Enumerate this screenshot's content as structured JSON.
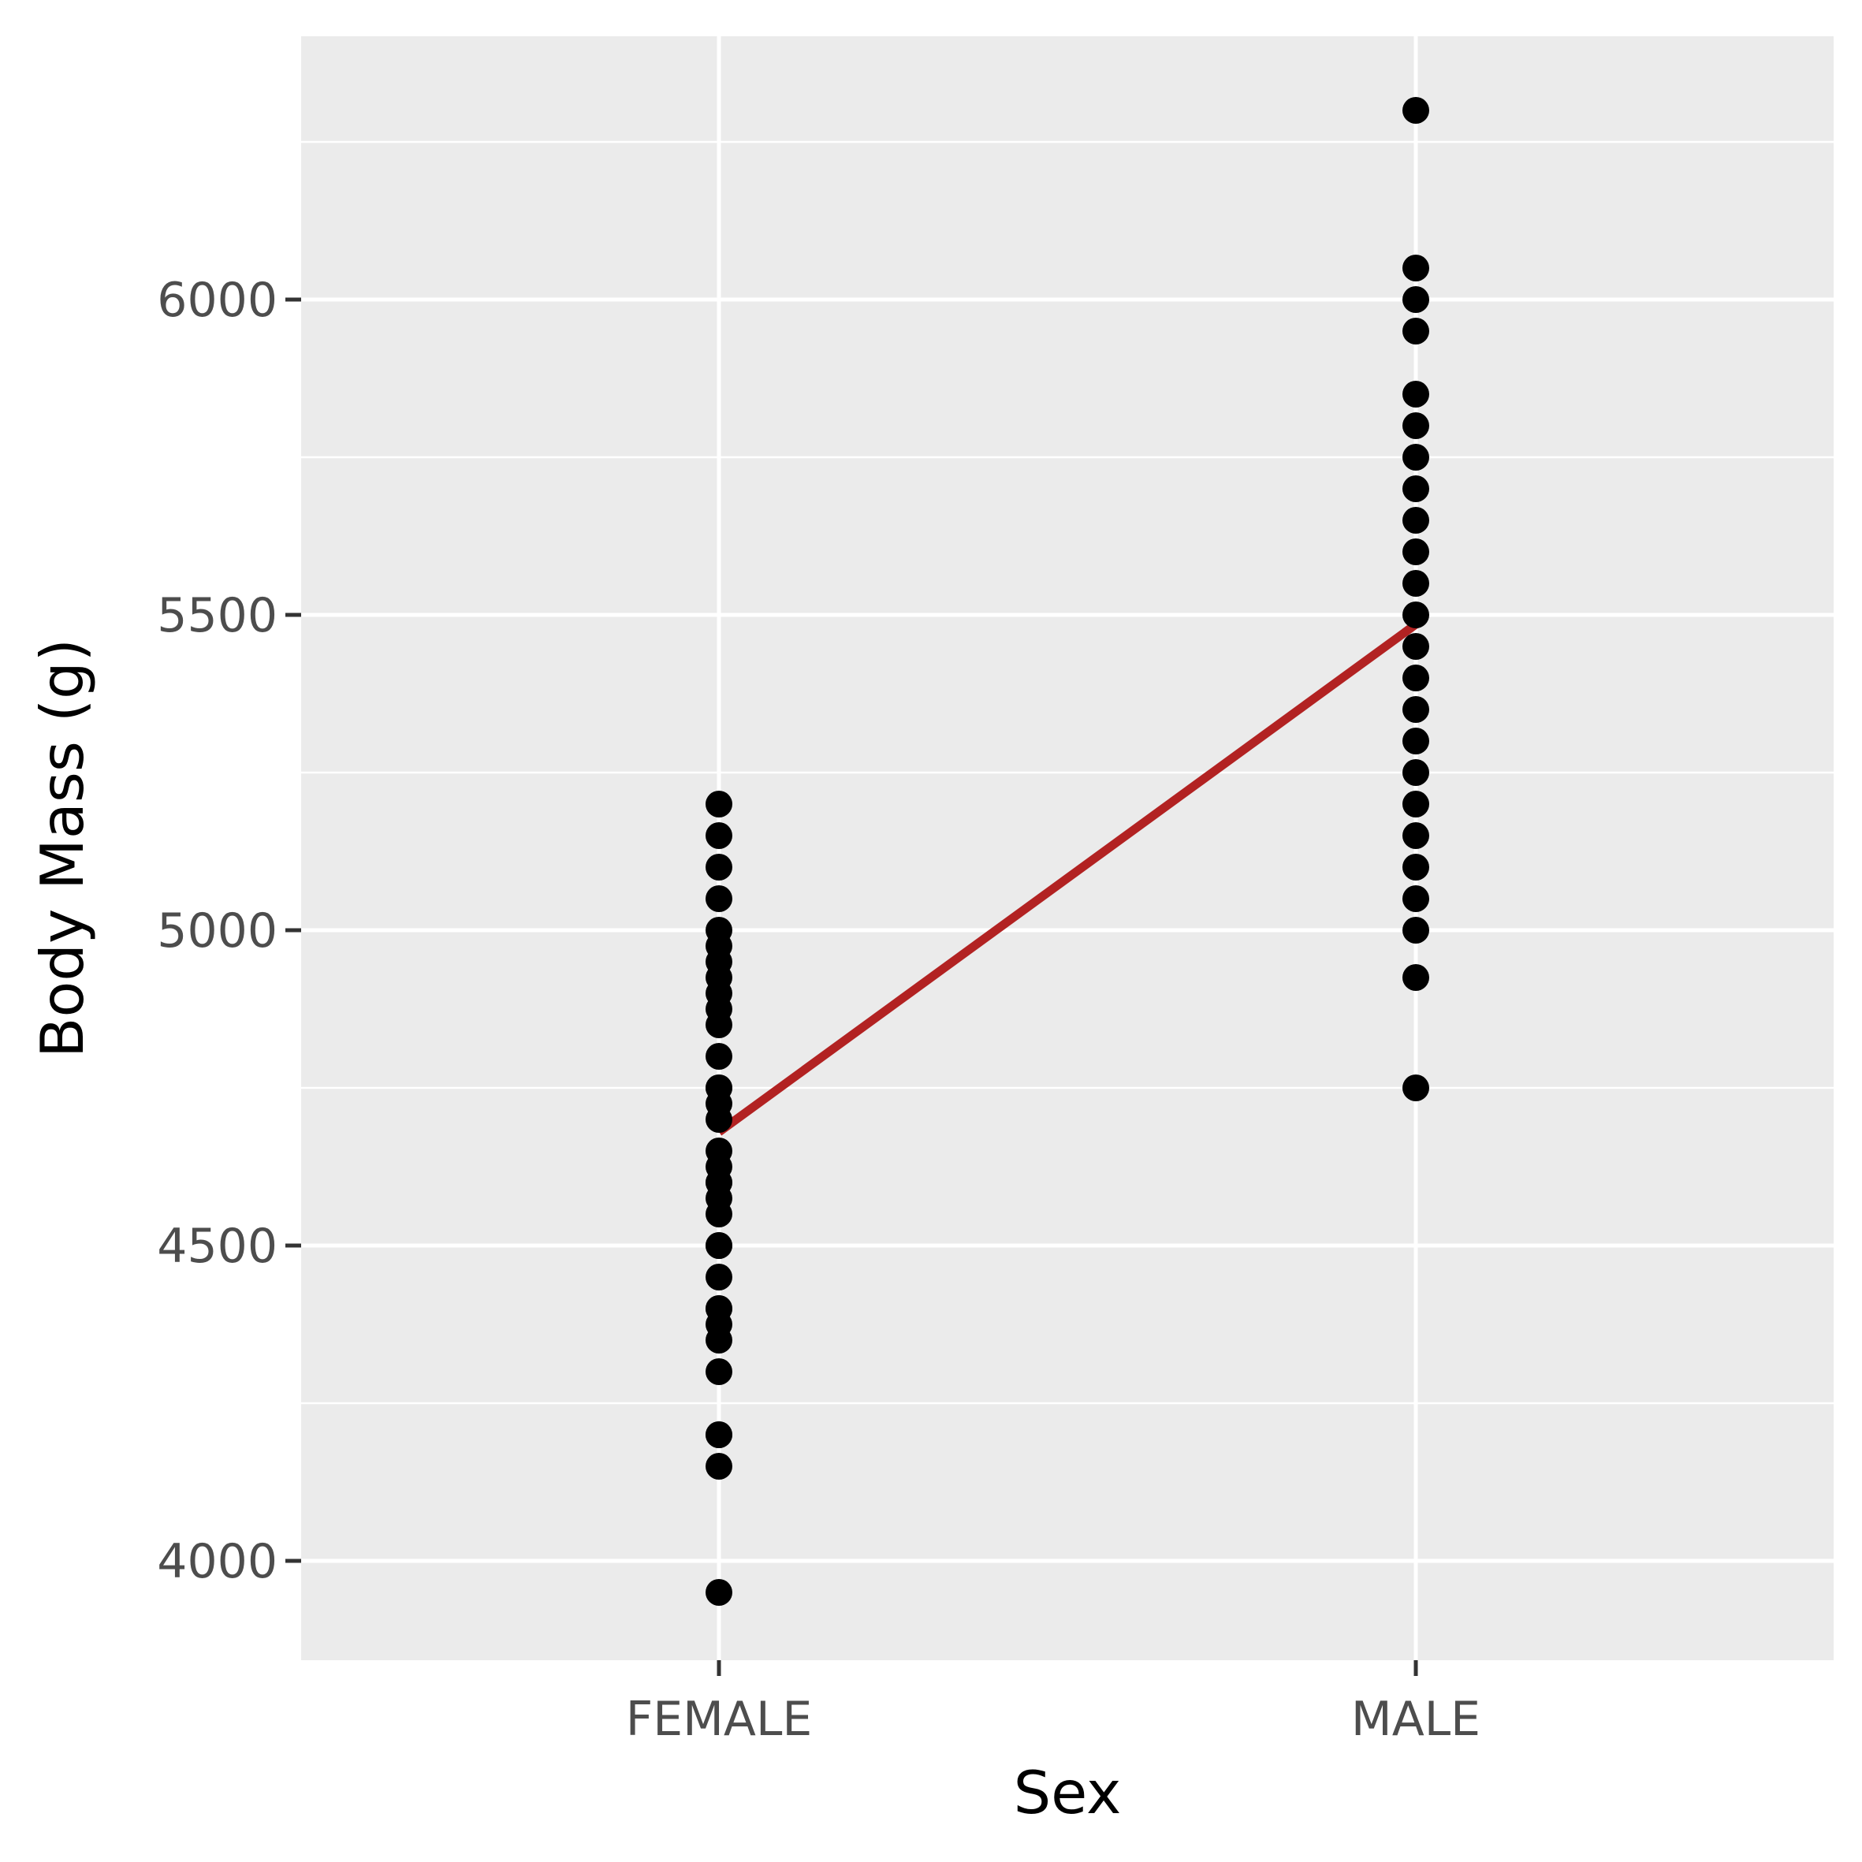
{
  "chart_data": {
    "type": "scatter",
    "xlabel": "Sex",
    "ylabel": "Body Mass (g)",
    "categories": [
      "FEMALE",
      "MALE"
    ],
    "y_ticks": [
      4000,
      4500,
      5000,
      5500,
      6000
    ],
    "y_tick_labels": [
      "4000",
      "4500",
      "5000",
      "5500",
      "6000"
    ],
    "ylim": [
      3842.5,
      6417.5
    ],
    "grid": true,
    "panel_background": "#ebebeb",
    "grid_color": "#ffffff",
    "point_color": "#000000",
    "line_color": "#b22222",
    "series": [
      {
        "category": "FEMALE",
        "values": [
          3950,
          4150,
          4200,
          4200,
          4300,
          4350,
          4375,
          4400,
          4400,
          4450,
          4500,
          4500,
          4550,
          4575,
          4600,
          4600,
          4625,
          4650,
          4700,
          4725,
          4750,
          4750,
          4800,
          4850,
          4875,
          4900,
          4925,
          4950,
          4975,
          5000,
          5050,
          5100,
          5150,
          5200
        ]
      },
      {
        "category": "MALE",
        "values": [
          4750,
          4925,
          5000,
          5050,
          5100,
          5150,
          5200,
          5250,
          5300,
          5350,
          5400,
          5450,
          5500,
          5550,
          5600,
          5650,
          5700,
          5750,
          5800,
          5850,
          5950,
          6000,
          6050,
          6300
        ]
      }
    ],
    "trend_line": {
      "FEMALE": 4680,
      "MALE": 5485
    }
  }
}
